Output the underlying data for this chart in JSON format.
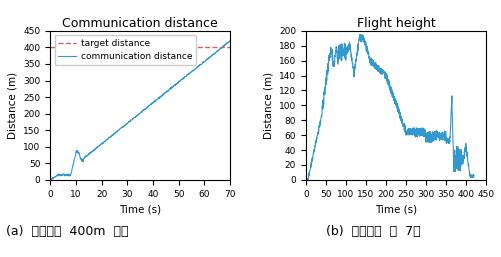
{
  "left": {
    "title": "Communication distance",
    "xlabel": "Time (s)",
    "ylabel": "Distance (m)",
    "xlim": [
      0,
      70
    ],
    "ylim": [
      0,
      450
    ],
    "xticks": [
      0,
      10,
      20,
      30,
      40,
      50,
      60,
      70
    ],
    "yticks": [
      0,
      50,
      100,
      150,
      200,
      250,
      300,
      350,
      400,
      450
    ],
    "target_distance": 400,
    "line_color": "#3399cc",
    "dashed_color": "#cc6666",
    "legend_labels": [
      "communication distance",
      "target distance"
    ],
    "caption": "(a)  통신거리  400m  이상"
  },
  "right": {
    "title": "Flight height",
    "xlabel": "Time (s)",
    "ylabel": "Distance (m)",
    "xlim": [
      0,
      450
    ],
    "ylim": [
      0,
      200
    ],
    "xticks": [
      0,
      50,
      100,
      150,
      200,
      250,
      300,
      350,
      400,
      450
    ],
    "yticks": [
      0,
      20,
      40,
      60,
      80,
      100,
      120,
      140,
      160,
      180,
      200
    ],
    "line_color": "#3399cc",
    "caption": "(b)  비행시간  약  7분"
  },
  "bg_color": "#ffffff",
  "title_fontsize": 9,
  "label_fontsize": 7.5,
  "tick_fontsize": 6.5,
  "legend_fontsize": 6.5,
  "caption_fontsize": 9
}
